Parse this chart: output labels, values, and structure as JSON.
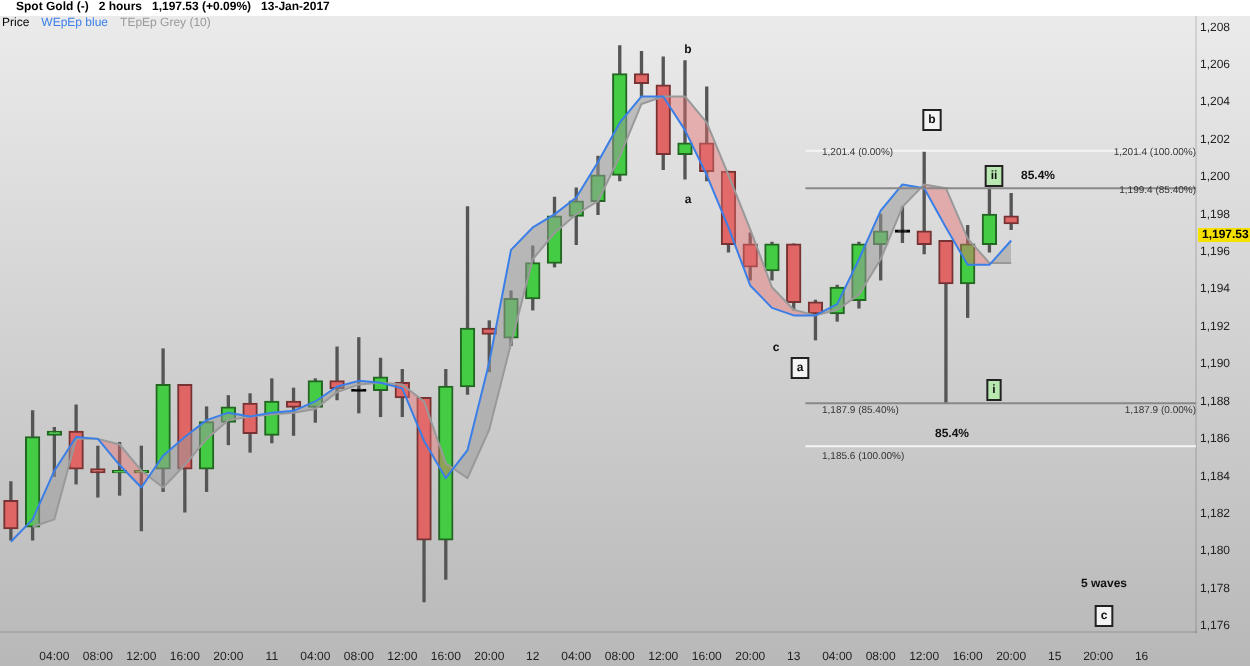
{
  "chart_data": {
    "type": "candlestick",
    "title": "Spot Gold (-)   2 hours   1,197.53 (+0.09%)   13-Jan-2017",
    "categories": [
      null,
      null,
      "04:00",
      null,
      "08:00",
      null,
      "12:00",
      null,
      "16:00",
      null,
      "20:00",
      null,
      "11",
      null,
      "04:00",
      null,
      "08:00",
      null,
      "12:00",
      null,
      "16:00",
      null,
      "20:00",
      null,
      "12",
      null,
      "04:00",
      null,
      "08:00",
      null,
      "12:00",
      null,
      "16:00",
      null,
      "20:00",
      null,
      "13",
      null,
      "04:00",
      null,
      "08:00",
      null,
      "12:00",
      null,
      "16:00",
      null,
      "20:00",
      null,
      "15",
      null,
      "20:00",
      null,
      "16",
      null,
      null
    ],
    "ohlc": [
      [
        1182.7,
        1183.7,
        1180.6,
        1181.2
      ],
      [
        1181.3,
        1187.5,
        1180.6,
        1186.1
      ],
      [
        1186.2,
        1186.6,
        1184.0,
        1186.4
      ],
      [
        1186.4,
        1187.8,
        1183.6,
        1184.4
      ],
      [
        1184.4,
        1185.6,
        1182.9,
        1184.2
      ],
      [
        1184.2,
        1185.8,
        1183.0,
        1184.3
      ],
      [
        1184.2,
        1185.6,
        1181.1,
        1184.3
      ],
      [
        1184.4,
        1190.8,
        1183.2,
        1188.9
      ],
      [
        1188.9,
        1188.9,
        1182.1,
        1184.4
      ],
      [
        1184.4,
        1187.7,
        1183.2,
        1186.9
      ],
      [
        1186.9,
        1188.3,
        1185.7,
        1187.7
      ],
      [
        1187.9,
        1188.4,
        1185.3,
        1186.3
      ],
      [
        1186.2,
        1189.2,
        1185.8,
        1188.0
      ],
      [
        1188.0,
        1188.7,
        1186.2,
        1187.7
      ],
      [
        1187.7,
        1189.2,
        1186.9,
        1189.1
      ],
      [
        1189.1,
        1190.9,
        1188.1,
        1188.7
      ],
      [
        1188.6,
        1191.4,
        1187.4,
        1188.6
      ],
      [
        1188.6,
        1190.3,
        1187.2,
        1189.3
      ],
      [
        1189.0,
        1189.7,
        1187.2,
        1188.2
      ],
      [
        1188.2,
        1188.2,
        1177.3,
        1180.6
      ],
      [
        1180.6,
        1189.7,
        1178.5,
        1188.8
      ],
      [
        1188.8,
        1198.4,
        1188.4,
        1191.9
      ],
      [
        1191.9,
        1192.3,
        1189.6,
        1191.6
      ],
      [
        1191.4,
        1193.9,
        1191.0,
        1193.5
      ],
      [
        1193.5,
        1196.3,
        1192.9,
        1195.4
      ],
      [
        1195.4,
        1198.9,
        1195.2,
        1197.9
      ],
      [
        1197.9,
        1199.4,
        1196.4,
        1198.7
      ],
      [
        1198.7,
        1201.1,
        1198.0,
        1200.1
      ],
      [
        1200.1,
        1207.0,
        1199.8,
        1205.5
      ],
      [
        1205.5,
        1206.7,
        1204.3,
        1205.0
      ],
      [
        1204.9,
        1206.4,
        1200.4,
        1201.2
      ],
      [
        1201.2,
        1206.2,
        1199.9,
        1201.8
      ],
      [
        1201.8,
        1204.8,
        1199.8,
        1200.3
      ],
      [
        1200.3,
        1200.3,
        1196.0,
        1196.4
      ],
      [
        1196.4,
        1197.0,
        1194.5,
        1195.2
      ],
      [
        1195.0,
        1196.5,
        1194.5,
        1196.4
      ],
      [
        1196.4,
        1196.4,
        1192.9,
        1193.3
      ],
      [
        1193.3,
        1193.4,
        1191.3,
        1192.7
      ],
      [
        1192.7,
        1194.2,
        1192.3,
        1194.1
      ],
      [
        1193.4,
        1196.5,
        1193.0,
        1196.4
      ],
      [
        1196.4,
        1198.0,
        1194.5,
        1197.1
      ],
      [
        1197.1,
        1198.4,
        1196.5,
        1197.1
      ],
      [
        1197.1,
        1201.4,
        1195.9,
        1196.4
      ],
      [
        1196.6,
        1196.6,
        1187.9,
        1194.3
      ],
      [
        1194.3,
        1197.4,
        1192.5,
        1196.4
      ],
      [
        1196.4,
        1199.4,
        1196.0,
        1198.0
      ],
      [
        1197.9,
        1199.1,
        1197.2,
        1197.5
      ],
      null,
      null,
      null,
      null,
      null,
      null,
      null,
      null
    ],
    "series": [
      {
        "name": "WEpEp blue",
        "color": "#3a7ee8",
        "type": "line",
        "values": [
          1180.5,
          1181.7,
          1184.3,
          1186.1,
          1186.0,
          1184.6,
          1183.4,
          1185.1,
          1186.1,
          1187.0,
          1187.4,
          1187.2,
          1187.4,
          1187.5,
          1188.0,
          1188.8,
          1189.1,
          1189.0,
          1188.7,
          1185.9,
          1183.9,
          1185.4,
          1190.1,
          1196.1,
          1197.3,
          1198.0,
          1198.9,
          1200.8,
          1202.9,
          1204.3,
          1204.3,
          1202.5,
          1200.1,
          1197.3,
          1194.2,
          1193.0,
          1192.6,
          1192.6,
          1193.2,
          1195.6,
          1198.2,
          1199.6,
          1199.4,
          1197.3,
          1195.3,
          1195.3,
          1196.6,
          null,
          null,
          null,
          null,
          null,
          null,
          null,
          null
        ]
      },
      {
        "name": "TEpEp Grey (10)",
        "color": "#999999",
        "type": "line",
        "values": [
          null,
          1181.3,
          1181.7,
          1186.0,
          1186.0,
          1185.7,
          1184.3,
          1183.4,
          1184.6,
          1186.0,
          1187.0,
          1187.2,
          1187.3,
          1187.4,
          1187.6,
          1188.5,
          1188.9,
          1189.0,
          1188.9,
          1188.0,
          1184.7,
          1183.9,
          1186.5,
          1191.1,
          1195.6,
          1197.0,
          1198.0,
          1198.7,
          1201.1,
          1203.9,
          1204.3,
          1204.3,
          1202.9,
          1200.1,
          1197.2,
          1194.1,
          1192.9,
          1192.6,
          1192.9,
          1193.7,
          1195.6,
          1198.4,
          1199.6,
          1199.4,
          1196.7,
          1195.4,
          1195.4,
          null,
          null,
          null,
          null,
          null,
          null,
          null,
          null
        ]
      }
    ],
    "ylim": [
      1175.7,
      1208.6
    ],
    "yticks": [
      {
        "value": 1176,
        "label": "1,176"
      },
      {
        "value": 1178,
        "label": "1,178"
      },
      {
        "value": 1180,
        "label": "1,180"
      },
      {
        "value": 1182,
        "label": "1,182"
      },
      {
        "value": 1184,
        "label": "1,184"
      },
      {
        "value": 1186,
        "label": "1,186"
      },
      {
        "value": 1188,
        "label": "1,188"
      },
      {
        "value": 1190,
        "label": "1,190"
      },
      {
        "value": 1192,
        "label": "1,192"
      },
      {
        "value": 1194,
        "label": "1,194"
      },
      {
        "value": 1196,
        "label": "1,196"
      },
      {
        "value": 1198,
        "label": "1,198"
      },
      {
        "value": 1200,
        "label": "1,200"
      },
      {
        "value": 1202,
        "label": "1,202"
      },
      {
        "value": 1204,
        "label": "1,204"
      },
      {
        "value": 1206,
        "label": "1,206"
      },
      {
        "value": 1208,
        "label": "1,208"
      }
    ],
    "ref_lines": [
      {
        "axis": "y",
        "value": 1201.4,
        "color": "#f4f4f4"
      },
      {
        "axis": "y",
        "value": 1199.4,
        "color": "#888888"
      },
      {
        "axis": "y",
        "value": 1187.9,
        "color": "#888888"
      },
      {
        "axis": "y",
        "value": 1185.6,
        "color": "#f4f4f4"
      }
    ],
    "annotations": [
      "b",
      "a",
      "c",
      "a",
      "b",
      "ii",
      "85.4%",
      "i",
      "85.4%",
      "5 waves",
      "c",
      "1,201.4 (0.00%)",
      "1,201.4 (100.00%)",
      "1,199.4 (85.40%)",
      "1,187.9 (85.40%)",
      "1,187.9 (0.00%)",
      "1,185.6 (100.00%)",
      "1,197.53",
      "Price"
    ],
    "legend": "top left",
    "grid": false
  }
}
